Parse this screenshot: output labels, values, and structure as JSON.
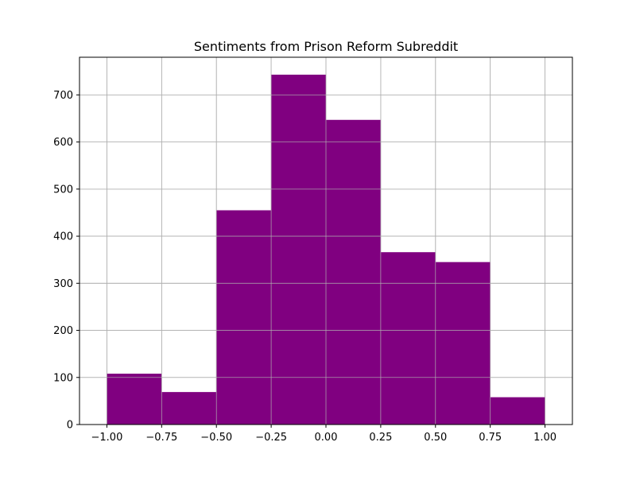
{
  "chart_data": {
    "type": "bar",
    "title": "Sentiments from Prison Reform Subreddit",
    "xlabel": "",
    "ylabel": "",
    "bin_edges": [
      -1.0,
      -0.75,
      -0.5,
      -0.25,
      0.0,
      0.25,
      0.5,
      0.75,
      1.0
    ],
    "values": [
      108,
      69,
      455,
      743,
      647,
      366,
      345,
      58
    ],
    "xlim": [
      -1.125,
      1.125
    ],
    "ylim": [
      0,
      780
    ],
    "xticks": [
      -1.0,
      -0.75,
      -0.5,
      -0.25,
      0.0,
      0.25,
      0.5,
      0.75,
      1.0
    ],
    "xtick_labels": [
      "−1.00",
      "−0.75",
      "−0.50",
      "−0.25",
      "0.00",
      "0.25",
      "0.50",
      "0.75",
      "1.00"
    ],
    "yticks": [
      0,
      100,
      200,
      300,
      400,
      500,
      600,
      700
    ],
    "ytick_labels": [
      "0",
      "100",
      "200",
      "300",
      "400",
      "500",
      "600",
      "700"
    ],
    "grid": true,
    "colors": {
      "bar": "#800080",
      "grid": "#b0b0b0",
      "axis": "#000000",
      "background": "#ffffff"
    }
  }
}
